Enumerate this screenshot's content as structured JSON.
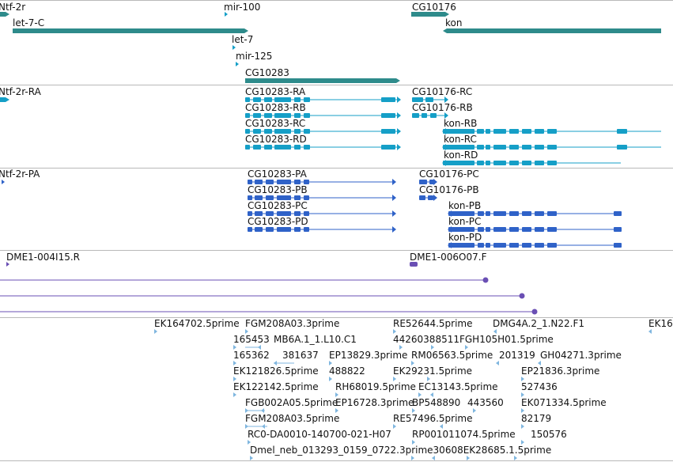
{
  "colors": {
    "gene": "#2e8b8b",
    "transcript": "#159fc7",
    "protein": "#2f62c8",
    "clone": "#6a4fb4",
    "est": "#7fb6df",
    "separator": "#b9b9b9"
  },
  "tracks": {
    "genes": {
      "labels": {
        "ntf2r": "Ntf-2r",
        "mir100": "mir-100",
        "cg10176": "CG10176",
        "let7c": "let-7-C",
        "kon": "kon",
        "let7": "let-7",
        "mir125": "mir-125",
        "cg10283": "CG10283"
      }
    },
    "transcripts": {
      "labels": {
        "ntf2r_ra": "Ntf-2r-RA",
        "cg10283_ra": "CG10283-RA",
        "cg10283_rb": "CG10283-RB",
        "cg10283_rc": "CG10283-RC",
        "cg10283_rd": "CG10283-RD",
        "cg10176_rc": "CG10176-RC",
        "cg10176_rb": "CG10176-RB",
        "kon_rb": "kon-RB",
        "kon_rc": "kon-RC",
        "kon_rd": "kon-RD"
      }
    },
    "proteins": {
      "labels": {
        "ntf2r_pa": "Ntf-2r-PA",
        "cg10283_pa": "CG10283-PA",
        "cg10283_pb": "CG10283-PB",
        "cg10283_pc": "CG10283-PC",
        "cg10283_pd": "CG10283-PD",
        "cg10176_pc": "CG10176-PC",
        "cg10176_pb": "CG10176-PB",
        "kon_pb": "kon-PB",
        "kon_pc": "kon-PC",
        "kon_pd": "kon-PD"
      }
    },
    "clones": {
      "labels": {
        "dme1_004i15": "DME1-004I15.R",
        "dme1_006o07": "DME1-006O07.F"
      }
    },
    "ests": {
      "labels": {
        "ek164702": "EK164702.5prime",
        "fgm208a03a": "FGM208A03.3prime",
        "re52644": "RE52644.5prime",
        "dmg4a2": "DMG4A.2_1.N22.F1",
        "ek16": "EK16",
        "n165453": "165453",
        "n44260": "44260388511FGH105H01.5prime",
        "n165362": "165362",
        "mb6a1": "MB6A.1_1.L10.C1",
        "n381637": "381637",
        "ep13829": "EP13829.3prime",
        "rm06563": "RM06563.5prime",
        "n201319": "201319",
        "gh04271": "GH04271.3prime",
        "ek121826": "EK121826.5prime",
        "n488822": "488822",
        "ek29231": "EK29231.5prime",
        "ep21836": "EP21836.3prime",
        "ek122142": "EK122142.5prime",
        "rh68019": "RH68019.5prime",
        "ec13143": "EC13143.5prime",
        "n527436": "527436",
        "fgb002a05": "FGB002A05.5prime",
        "ep16728": "EP16728.3prime",
        "bp548890": "BP548890",
        "n443560": "443560",
        "ek071334": "EK071334.5prime",
        "fgm208a03b": "FGM208A03.5prime",
        "re57496": "RE57496.5prime",
        "n82179": "82179",
        "rc0": "RC0-DA0010-140700-021-H07",
        "rp001011074": "RP001011074.5prime",
        "n150576": "150576",
        "dmel_neb": "Dmel_neb_013293_0159_0722.3prime30608EK28685.1.5prime"
      }
    }
  }
}
